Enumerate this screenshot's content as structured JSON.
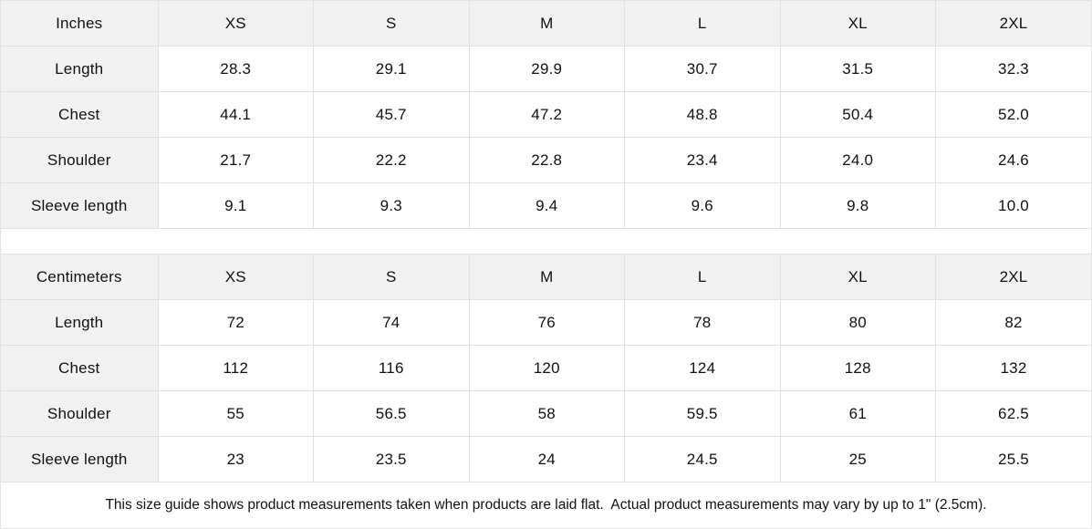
{
  "colors": {
    "header_bg": "#f1f1f1",
    "border": "#e0e0e0",
    "text": "#111111",
    "background": "#ffffff"
  },
  "size_columns": [
    "XS",
    "S",
    "M",
    "L",
    "XL",
    "2XL"
  ],
  "tables": [
    {
      "unit_label": "Inches",
      "rows": [
        {
          "label": "Length",
          "values": [
            "28.3",
            "29.1",
            "29.9",
            "30.7",
            "31.5",
            "32.3"
          ]
        },
        {
          "label": "Chest",
          "values": [
            "44.1",
            "45.7",
            "47.2",
            "48.8",
            "50.4",
            "52.0"
          ]
        },
        {
          "label": "Shoulder",
          "values": [
            "21.7",
            "22.2",
            "22.8",
            "23.4",
            "24.0",
            "24.6"
          ]
        },
        {
          "label": "Sleeve length",
          "values": [
            "9.1",
            "9.3",
            "9.4",
            "9.6",
            "9.8",
            "10.0"
          ]
        }
      ]
    },
    {
      "unit_label": "Centimeters",
      "rows": [
        {
          "label": "Length",
          "values": [
            "72",
            "74",
            "76",
            "78",
            "80",
            "82"
          ]
        },
        {
          "label": "Chest",
          "values": [
            "112",
            "116",
            "120",
            "124",
            "128",
            "132"
          ]
        },
        {
          "label": "Shoulder",
          "values": [
            "55",
            "56.5",
            "58",
            "59.5",
            "61",
            "62.5"
          ]
        },
        {
          "label": "Sleeve length",
          "values": [
            "23",
            "23.5",
            "24",
            "24.5",
            "25",
            "25.5"
          ]
        }
      ]
    }
  ],
  "footer_note": "This size guide shows product measurements taken when products are laid flat.  Actual product measurements may vary by up to 1\" (2.5cm)."
}
